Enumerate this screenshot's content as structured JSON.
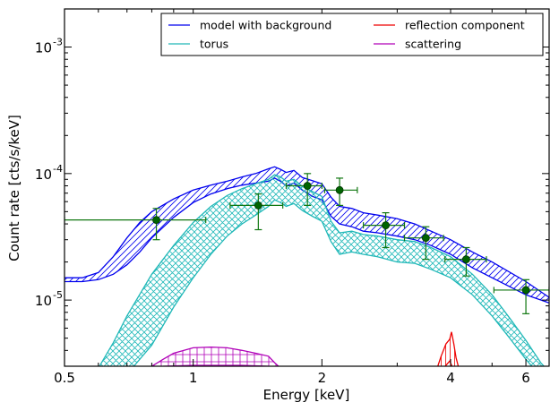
{
  "chart_data": {
    "type": "line",
    "xlabel": "Energy [keV]",
    "ylabel": "Count rate [cts/s/keV]",
    "xscale": "log",
    "yscale": "log",
    "xlim": [
      0.5,
      6.8
    ],
    "ylim": [
      3e-06,
      0.002
    ],
    "x_ticks": [
      {
        "value": 0.5,
        "label": "0.5"
      },
      {
        "value": 1,
        "label": "1"
      },
      {
        "value": 2,
        "label": "2"
      },
      {
        "value": 4,
        "label": "4"
      },
      {
        "value": 6,
        "label": "6"
      }
    ],
    "y_ticks": [
      {
        "value": 1e-05,
        "base": "10",
        "exp": "-5"
      },
      {
        "value": 0.0001,
        "base": "10",
        "exp": "-4"
      },
      {
        "value": 0.001,
        "base": "10",
        "exp": "-3"
      }
    ],
    "legend": {
      "placement": "top-right",
      "entries": [
        {
          "label": "model with background",
          "color": "#0000ee"
        },
        {
          "label": "reflection component",
          "color": "#ee0000"
        },
        {
          "label": "torus",
          "color": "#20b8b8"
        },
        {
          "label": "scattering",
          "color": "#b000b8"
        }
      ]
    },
    "series": [
      {
        "key": "model",
        "color": "#0000ee",
        "hatch": "diag",
        "upper": [
          [
            0.5,
            1.5e-05
          ],
          [
            0.55,
            1.5e-05
          ],
          [
            0.6,
            1.65e-05
          ],
          [
            0.65,
            2.2e-05
          ],
          [
            0.7,
            3.1e-05
          ],
          [
            0.75,
            4.1e-05
          ],
          [
            0.8,
            5e-05
          ],
          [
            0.9,
            6.3e-05
          ],
          [
            1.0,
            7.4e-05
          ],
          [
            1.1,
            8.1e-05
          ],
          [
            1.2,
            8.7e-05
          ],
          [
            1.3,
            9.4e-05
          ],
          [
            1.4,
            0.0001
          ],
          [
            1.5,
            0.000109
          ],
          [
            1.55,
            0.000113
          ],
          [
            1.6,
            0.000108
          ],
          [
            1.65,
            0.000102
          ],
          [
            1.72,
            0.000106
          ],
          [
            1.8,
            9.3e-05
          ],
          [
            1.9,
            8.8e-05
          ],
          [
            2.0,
            8.3e-05
          ],
          [
            2.1,
            6.5e-05
          ],
          [
            2.2,
            5.5e-05
          ],
          [
            2.35,
            5.3e-05
          ],
          [
            2.5,
            4.9e-05
          ],
          [
            2.7,
            4.7e-05
          ],
          [
            3.0,
            4.4e-05
          ],
          [
            3.3,
            4e-05
          ],
          [
            3.6,
            3.5e-05
          ],
          [
            4.0,
            3e-05
          ],
          [
            4.5,
            2.4e-05
          ],
          [
            5.0,
            2e-05
          ],
          [
            6.0,
            1.4e-05
          ],
          [
            6.8,
            1.05e-05
          ]
        ],
        "lower": [
          [
            0.5,
            1.4e-05
          ],
          [
            0.55,
            1.4e-05
          ],
          [
            0.6,
            1.45e-05
          ],
          [
            0.65,
            1.6e-05
          ],
          [
            0.7,
            1.9e-05
          ],
          [
            0.75,
            2.4e-05
          ],
          [
            0.8,
            3.1e-05
          ],
          [
            0.9,
            4.5e-05
          ],
          [
            1.0,
            5.9e-05
          ],
          [
            1.1,
            6.9e-05
          ],
          [
            1.2,
            7.6e-05
          ],
          [
            1.3,
            8.1e-05
          ],
          [
            1.4,
            8.4e-05
          ],
          [
            1.5,
            8.7e-05
          ],
          [
            1.55,
            9.2e-05
          ],
          [
            1.6,
            8.7e-05
          ],
          [
            1.65,
            8e-05
          ],
          [
            1.72,
            8.4e-05
          ],
          [
            1.8,
            7.4e-05
          ],
          [
            1.9,
            6.6e-05
          ],
          [
            2.0,
            6.2e-05
          ],
          [
            2.1,
            4.6e-05
          ],
          [
            2.2,
            4e-05
          ],
          [
            2.35,
            3.8e-05
          ],
          [
            2.5,
            3.5e-05
          ],
          [
            2.7,
            3.4e-05
          ],
          [
            3.0,
            3.2e-05
          ],
          [
            3.3,
            3e-05
          ],
          [
            3.6,
            2.7e-05
          ],
          [
            4.0,
            2.3e-05
          ],
          [
            4.5,
            1.8e-05
          ],
          [
            5.0,
            1.5e-05
          ],
          [
            6.0,
            1.1e-05
          ],
          [
            6.8,
            9.5e-06
          ]
        ]
      },
      {
        "key": "torus",
        "color": "#20b8b8",
        "hatch": "cross",
        "upper": [
          [
            0.6,
            2.9e-06
          ],
          [
            0.65,
            4.6e-06
          ],
          [
            0.7,
            7.5e-06
          ],
          [
            0.8,
            1.6e-05
          ],
          [
            0.9,
            2.7e-05
          ],
          [
            1.0,
            4.1e-05
          ],
          [
            1.1,
            5.5e-05
          ],
          [
            1.2,
            6.7e-05
          ],
          [
            1.3,
            7.6e-05
          ],
          [
            1.4,
            8.3e-05
          ],
          [
            1.5,
            9e-05
          ],
          [
            1.55,
            9.8e-05
          ],
          [
            1.6,
            9.4e-05
          ],
          [
            1.65,
            8.7e-05
          ],
          [
            1.72,
            9e-05
          ],
          [
            1.8,
            7.9e-05
          ],
          [
            1.9,
            7.2e-05
          ],
          [
            2.0,
            6.6e-05
          ],
          [
            2.1,
            4.2e-05
          ],
          [
            2.2,
            3.4e-05
          ],
          [
            2.35,
            3.5e-05
          ],
          [
            2.5,
            3.3e-05
          ],
          [
            2.7,
            3.2e-05
          ],
          [
            3.0,
            3e-05
          ],
          [
            3.3,
            2.9e-05
          ],
          [
            3.6,
            2.6e-05
          ],
          [
            4.0,
            2.2e-05
          ],
          [
            4.5,
            1.6e-05
          ],
          [
            5.0,
            1.1e-05
          ],
          [
            5.5,
            7.2e-06
          ],
          [
            6.0,
            4.8e-06
          ],
          [
            6.5,
            3.2e-06
          ],
          [
            6.8,
            2.7e-06
          ]
        ],
        "lower": [
          [
            0.72,
            2.9e-06
          ],
          [
            0.8,
            4.4e-06
          ],
          [
            0.9,
            8.8e-06
          ],
          [
            1.0,
            1.5e-05
          ],
          [
            1.1,
            2.3e-05
          ],
          [
            1.2,
            3.2e-05
          ],
          [
            1.3,
            4e-05
          ],
          [
            1.4,
            4.7e-05
          ],
          [
            1.5,
            5.5e-05
          ],
          [
            1.55,
            6.2e-05
          ],
          [
            1.6,
            5.9e-05
          ],
          [
            1.65,
            5.5e-05
          ],
          [
            1.72,
            5.8e-05
          ],
          [
            1.8,
            5.1e-05
          ],
          [
            1.9,
            4.6e-05
          ],
          [
            2.0,
            4.2e-05
          ],
          [
            2.1,
            2.9e-05
          ],
          [
            2.2,
            2.3e-05
          ],
          [
            2.35,
            2.4e-05
          ],
          [
            2.5,
            2.3e-05
          ],
          [
            2.7,
            2.2e-05
          ],
          [
            3.0,
            2e-05
          ],
          [
            3.3,
            1.95e-05
          ],
          [
            3.6,
            1.75e-05
          ],
          [
            4.0,
            1.5e-05
          ],
          [
            4.5,
            1.1e-05
          ],
          [
            5.0,
            7.5e-06
          ],
          [
            5.5,
            5e-06
          ],
          [
            6.0,
            3.4e-06
          ],
          [
            6.3,
            2.8e-06
          ]
        ]
      },
      {
        "key": "scattering",
        "color": "#b000b8",
        "hatch": "grid",
        "upper": [
          [
            0.8,
            3e-06
          ],
          [
            0.85,
            3.4e-06
          ],
          [
            0.9,
            3.8e-06
          ],
          [
            1.0,
            4.2e-06
          ],
          [
            1.1,
            4.25e-06
          ],
          [
            1.2,
            4.2e-06
          ],
          [
            1.3,
            4e-06
          ],
          [
            1.4,
            3.8e-06
          ],
          [
            1.5,
            3.6e-06
          ],
          [
            1.55,
            3.2e-06
          ],
          [
            1.6,
            2.9e-06
          ]
        ],
        "lower": [
          [
            0.85,
            3e-06
          ],
          [
            1.0,
            3.05e-06
          ],
          [
            1.3,
            3.05e-06
          ],
          [
            1.5,
            3e-06
          ]
        ]
      },
      {
        "key": "reflection",
        "color": "#ee0000",
        "hatch": "vert",
        "upper": [
          [
            3.72,
            2.9e-06
          ],
          [
            3.8,
            3.6e-06
          ],
          [
            3.9,
            4.5e-06
          ],
          [
            3.98,
            4.9e-06
          ],
          [
            4.02,
            5.6e-06
          ],
          [
            4.07,
            4.5e-06
          ],
          [
            4.12,
            3.5e-06
          ],
          [
            4.18,
            2.9e-06
          ]
        ],
        "lower": [
          [
            3.85,
            2.9e-06
          ],
          [
            3.98,
            3.3e-06
          ],
          [
            4.03,
            3e-06
          ],
          [
            4.08,
            2.9e-06
          ]
        ]
      }
    ],
    "data_points": [
      {
        "x": 0.82,
        "y": 4.3e-05,
        "xlo": 0.5,
        "xhi": 1.07,
        "ylo": 3e-05,
        "yhi": 5.3e-05
      },
      {
        "x": 1.42,
        "y": 5.6e-05,
        "xlo": 1.22,
        "xhi": 1.62,
        "ylo": 3.6e-05,
        "yhi": 6.9e-05
      },
      {
        "x": 1.85,
        "y": 8e-05,
        "xlo": 1.65,
        "xhi": 2.0,
        "ylo": 5.6e-05,
        "yhi": 0.0001
      },
      {
        "x": 2.2,
        "y": 7.4e-05,
        "xlo": 2.03,
        "xhi": 2.42,
        "ylo": 5.6e-05,
        "yhi": 9.2e-05
      },
      {
        "x": 2.82,
        "y": 3.9e-05,
        "xlo": 2.5,
        "xhi": 3.12,
        "ylo": 2.6e-05,
        "yhi": 4.9e-05
      },
      {
        "x": 3.5,
        "y": 3.1e-05,
        "xlo": 3.12,
        "xhi": 3.85,
        "ylo": 2.1e-05,
        "yhi": 3.8e-05
      },
      {
        "x": 4.35,
        "y": 2.1e-05,
        "xlo": 3.88,
        "xhi": 4.85,
        "ylo": 1.55e-05,
        "yhi": 2.6e-05
      },
      {
        "x": 6.0,
        "y": 1.2e-05,
        "xlo": 5.05,
        "xhi": 6.8,
        "ylo": 7.8e-06,
        "yhi": 1.45e-05
      }
    ]
  }
}
